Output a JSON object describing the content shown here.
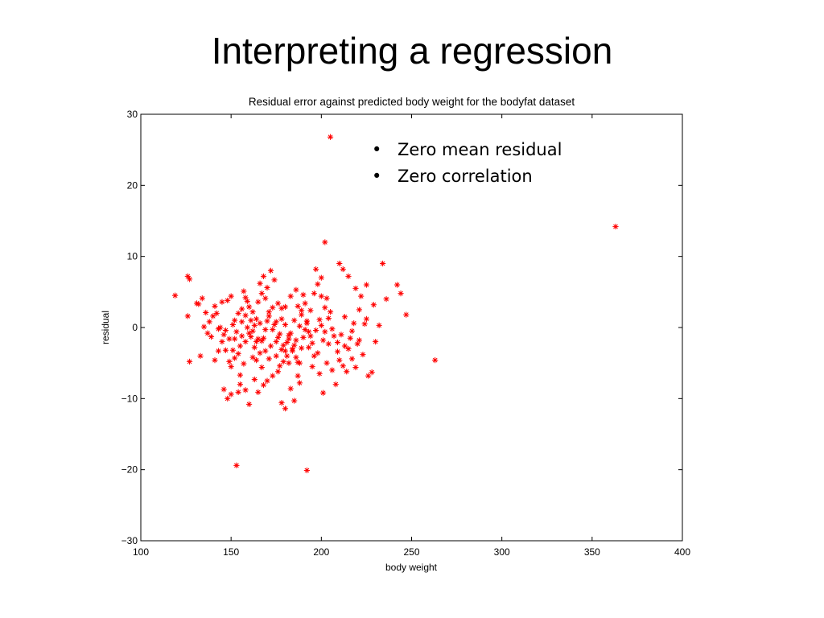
{
  "slide": {
    "title": "Interpreting a regression",
    "bullets": [
      "Zero mean residual",
      "Zero correlation"
    ],
    "bullet_glyph": "•"
  },
  "chart_data": {
    "type": "scatter",
    "title": "Residual error against predicted body weight for the bodyfat dataset",
    "xlabel": "body weight",
    "ylabel": "residual",
    "xlim": [
      100,
      400
    ],
    "ylim": [
      -30,
      30
    ],
    "xticks": [
      100,
      150,
      200,
      250,
      300,
      350,
      400
    ],
    "yticks": [
      30,
      20,
      10,
      0,
      -10,
      -20,
      -30
    ],
    "ytick_labels": [
      "30",
      "20",
      "10",
      "0",
      "−10",
      "−20",
      "−30"
    ],
    "marker": "*",
    "marker_color": "#ff0000",
    "grid": false,
    "series": [
      {
        "points": [
          [
            205,
            26.8
          ],
          [
            363,
            14.2
          ],
          [
            202,
            12.0
          ],
          [
            234,
            9.0
          ],
          [
            210,
            9.0
          ],
          [
            263,
            -4.6
          ],
          [
            247,
            1.8
          ],
          [
            244,
            4.8
          ],
          [
            242,
            6.0
          ],
          [
            236,
            4.0
          ],
          [
            229,
            3.2
          ],
          [
            222,
            4.4
          ],
          [
            225,
            6.0
          ],
          [
            119,
            4.5
          ],
          [
            126,
            7.2
          ],
          [
            127,
            6.8
          ],
          [
            126,
            1.6
          ],
          [
            127,
            -4.8
          ],
          [
            133,
            -4.0
          ],
          [
            132,
            3.3
          ],
          [
            131,
            3.4
          ],
          [
            136,
            2.1
          ],
          [
            134,
            4.1
          ],
          [
            138,
            0.8
          ],
          [
            142,
            2.0
          ],
          [
            140,
            1.6
          ],
          [
            141,
            3.0
          ],
          [
            145,
            3.6
          ],
          [
            148,
            3.8
          ],
          [
            150,
            4.4
          ],
          [
            152,
            1.0
          ],
          [
            149,
            -1.6
          ],
          [
            151,
            -3.2
          ],
          [
            146,
            -8.7
          ],
          [
            148,
            -10.0
          ],
          [
            150,
            -9.4
          ],
          [
            154,
            -9.1
          ],
          [
            153,
            -19.4
          ],
          [
            150,
            -5.5
          ],
          [
            152,
            -4.3
          ],
          [
            155,
            -6.7
          ],
          [
            157,
            -5.1
          ],
          [
            158,
            -2.0
          ],
          [
            160,
            -0.8
          ],
          [
            162,
            2.2
          ],
          [
            164,
            1.2
          ],
          [
            165,
            3.6
          ],
          [
            167,
            4.8
          ],
          [
            168,
            7.2
          ],
          [
            170,
            5.6
          ],
          [
            172,
            8.0
          ],
          [
            174,
            6.7
          ],
          [
            176,
            3.4
          ],
          [
            178,
            2.7
          ],
          [
            180,
            0.4
          ],
          [
            182,
            -1.6
          ],
          [
            184,
            -3.0
          ],
          [
            186,
            -4.2
          ],
          [
            188,
            -5.0
          ],
          [
            190,
            -1.4
          ],
          [
            192,
            0.6
          ],
          [
            194,
            2.4
          ],
          [
            196,
            4.8
          ],
          [
            198,
            6.1
          ],
          [
            200,
            7.0
          ],
          [
            203,
            4.1
          ],
          [
            205,
            2.2
          ],
          [
            207,
            -1.2
          ],
          [
            209,
            -3.4
          ],
          [
            212,
            -5.4
          ],
          [
            214,
            -6.2
          ],
          [
            216,
            -1.5
          ],
          [
            218,
            0.6
          ],
          [
            220,
            -2.3
          ],
          [
            223,
            -3.8
          ],
          [
            226,
            -6.8
          ],
          [
            228,
            -6.3
          ],
          [
            230,
            -2.0
          ],
          [
            232,
            0.3
          ],
          [
            201,
            -9.2
          ],
          [
            192,
            -20.1
          ],
          [
            180,
            -11.4
          ],
          [
            178,
            -10.6
          ],
          [
            170,
            -7.5
          ],
          [
            173,
            -6.8
          ],
          [
            165,
            -9.1
          ],
          [
            163,
            -7.3
          ],
          [
            160,
            -10.8
          ],
          [
            158,
            -8.8
          ],
          [
            183,
            -8.6
          ],
          [
            185,
            -10.3
          ],
          [
            187,
            -6.8
          ],
          [
            195,
            -5.5
          ],
          [
            198,
            -3.6
          ],
          [
            215,
            7.2
          ],
          [
            212,
            8.2
          ],
          [
            219,
            5.5
          ],
          [
            197,
            8.2
          ],
          [
            200,
            4.4
          ],
          [
            202,
            2.8
          ],
          [
            204,
            1.3
          ],
          [
            206,
            -0.2
          ],
          [
            209,
            -2.1
          ],
          [
            211,
            -1.0
          ],
          [
            213,
            1.5
          ],
          [
            215,
            -3.0
          ],
          [
            217,
            -4.4
          ],
          [
            219,
            -5.6
          ],
          [
            221,
            -1.8
          ],
          [
            224,
            0.5
          ],
          [
            144,
            0.0
          ],
          [
            146,
            -1.0
          ],
          [
            147,
            -3.2
          ],
          [
            149,
            -4.8
          ],
          [
            151,
            0.4
          ],
          [
            153,
            -0.6
          ],
          [
            155,
            -2.6
          ],
          [
            156,
            2.6
          ],
          [
            158,
            4.2
          ],
          [
            159,
            0.0
          ],
          [
            161,
            -1.3
          ],
          [
            163,
            -2.8
          ],
          [
            164,
            -4.6
          ],
          [
            166,
            -3.6
          ],
          [
            167,
            -1.9
          ],
          [
            169,
            -0.3
          ],
          [
            171,
            1.6
          ],
          [
            173,
            2.8
          ],
          [
            175,
            0.8
          ],
          [
            177,
            -0.9
          ],
          [
            179,
            -2.5
          ],
          [
            181,
            -4.0
          ],
          [
            182,
            -5.0
          ],
          [
            184,
            -3.3
          ],
          [
            186,
            -1.8
          ],
          [
            188,
            0.2
          ],
          [
            189,
            1.8
          ],
          [
            191,
            3.4
          ],
          [
            193,
            -0.6
          ],
          [
            195,
            -2.2
          ],
          [
            197,
            -0.4
          ],
          [
            199,
            1.1
          ],
          [
            201,
            -1.8
          ],
          [
            157,
            5.1
          ],
          [
            159,
            3.7
          ],
          [
            166,
            6.2
          ],
          [
            169,
            4.1
          ],
          [
            171,
            2.2
          ],
          [
            174,
            0.4
          ],
          [
            176,
            -1.4
          ],
          [
            178,
            -3.1
          ],
          [
            181,
            -2.1
          ],
          [
            183,
            -0.8
          ],
          [
            185,
            1.0
          ],
          [
            187,
            3.0
          ],
          [
            190,
            4.6
          ],
          [
            161,
            1.0
          ],
          [
            162,
            -0.5
          ],
          [
            164,
            -2.0
          ],
          [
            166,
            0.6
          ],
          [
            168,
            -1.5
          ],
          [
            170,
            0.9
          ],
          [
            172,
            -2.6
          ],
          [
            175,
            -4.0
          ],
          [
            177,
            -5.4
          ],
          [
            179,
            -4.8
          ],
          [
            180,
            -3.3
          ],
          [
            182,
            -1.1
          ],
          [
            173,
            -0.3
          ],
          [
            169,
            -3.3
          ],
          [
            165,
            -1.6
          ],
          [
            163,
            0.3
          ],
          [
            145,
            -2.0
          ],
          [
            143,
            -0.2
          ],
          [
            139,
            -1.3
          ],
          [
            137,
            -0.8
          ],
          [
            135,
            0.1
          ],
          [
            141,
            -4.6
          ],
          [
            143,
            -3.3
          ],
          [
            147,
            -0.4
          ],
          [
            152,
            -1.6
          ],
          [
            154,
            2.0
          ],
          [
            156,
            0.8
          ],
          [
            162,
            -4.2
          ],
          [
            167,
            -5.6
          ],
          [
            171,
            -4.4
          ],
          [
            175,
            -2.0
          ],
          [
            178,
            1.2
          ],
          [
            180,
            2.9
          ],
          [
            183,
            4.4
          ],
          [
            186,
            5.3
          ],
          [
            189,
            2.4
          ],
          [
            191,
            -0.3
          ],
          [
            193,
            -2.8
          ],
          [
            196,
            -4.0
          ],
          [
            203,
            -5.0
          ],
          [
            206,
            -6.0
          ],
          [
            210,
            -4.6
          ],
          [
            213,
            -2.6
          ],
          [
            217,
            -0.5
          ],
          [
            221,
            2.5
          ],
          [
            225,
            1.2
          ],
          [
            208,
            -8.0
          ],
          [
            199,
            -6.5
          ],
          [
            188,
            -7.8
          ],
          [
            176,
            -6.2
          ],
          [
            168,
            -8.1
          ],
          [
            155,
            -8.0
          ],
          [
            200,
            0.3
          ],
          [
            202,
            -0.6
          ],
          [
            204,
            -2.3
          ],
          [
            194,
            -1.2
          ],
          [
            192,
            0.9
          ],
          [
            189,
            -2.9
          ],
          [
            185,
            -2.5
          ],
          [
            187,
            -4.9
          ],
          [
            160,
            2.9
          ],
          [
            158,
            1.7
          ],
          [
            156,
            -1.2
          ],
          [
            154,
            -3.7
          ]
        ]
      }
    ]
  }
}
